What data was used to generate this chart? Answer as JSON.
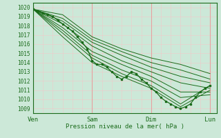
{
  "xlabel": "Pression niveau de la mer( hPa )",
  "xtick_labels": [
    "Ven",
    "Sam",
    "Dim",
    "Lun"
  ],
  "xtick_positions": [
    0,
    36,
    72,
    108
  ],
  "ylim": [
    1008.5,
    1020.5
  ],
  "xlim": [
    0,
    112
  ],
  "yticks": [
    1009,
    1010,
    1011,
    1012,
    1013,
    1014,
    1015,
    1016,
    1017,
    1018,
    1019,
    1020
  ],
  "bg_color": "#cce8d8",
  "grid_color_major": "#e8a0a0",
  "grid_color_minor": "#f0c8c8",
  "line_color": "#1a6b1a",
  "lines": [
    [
      0,
      1019.8,
      18,
      1019.2,
      36,
      1016.8,
      54,
      1015.5,
      72,
      1014.5,
      90,
      1013.8,
      108,
      1012.8
    ],
    [
      0,
      1019.8,
      18,
      1018.8,
      36,
      1016.5,
      54,
      1015.2,
      72,
      1014.0,
      90,
      1013.2,
      108,
      1012.2
    ],
    [
      0,
      1019.8,
      18,
      1018.5,
      36,
      1016.2,
      54,
      1014.8,
      72,
      1013.5,
      90,
      1012.5,
      108,
      1011.8
    ],
    [
      0,
      1019.8,
      18,
      1018.2,
      36,
      1015.8,
      54,
      1014.2,
      72,
      1013.0,
      90,
      1011.8,
      108,
      1011.2
    ],
    [
      0,
      1019.8,
      18,
      1017.8,
      36,
      1015.2,
      54,
      1013.8,
      72,
      1012.5,
      90,
      1010.8,
      108,
      1010.8
    ],
    [
      0,
      1019.8,
      18,
      1017.5,
      36,
      1014.8,
      54,
      1013.2,
      72,
      1012.0,
      90,
      1010.2,
      108,
      1010.5
    ],
    [
      0,
      1019.8,
      18,
      1017.2,
      36,
      1014.5,
      54,
      1012.8,
      72,
      1011.5,
      90,
      1009.5,
      108,
      1011.5
    ],
    [
      0,
      1019.8,
      18,
      1016.8,
      36,
      1014.0,
      54,
      1012.5,
      72,
      1011.2,
      90,
      1009.2,
      108,
      1011.0
    ]
  ],
  "dotted_line": [
    0,
    1019.8,
    3,
    1019.6,
    6,
    1019.4,
    9,
    1019.2,
    12,
    1019.0,
    15,
    1018.6,
    18,
    1018.2,
    21,
    1017.8,
    24,
    1017.4,
    27,
    1016.8,
    30,
    1016.2,
    33,
    1015.5,
    36,
    1014.2,
    39,
    1013.8,
    42,
    1013.8,
    45,
    1013.5,
    48,
    1013.0,
    51,
    1012.5,
    54,
    1012.2,
    57,
    1012.5,
    60,
    1013.0,
    63,
    1012.8,
    66,
    1012.2,
    69,
    1011.8,
    72,
    1011.2,
    75,
    1010.8,
    78,
    1010.2,
    81,
    1009.8,
    84,
    1009.5,
    87,
    1009.2,
    90,
    1009.0,
    93,
    1009.2,
    96,
    1009.5,
    99,
    1010.2,
    102,
    1010.8,
    105,
    1011.2,
    108,
    1011.5
  ]
}
